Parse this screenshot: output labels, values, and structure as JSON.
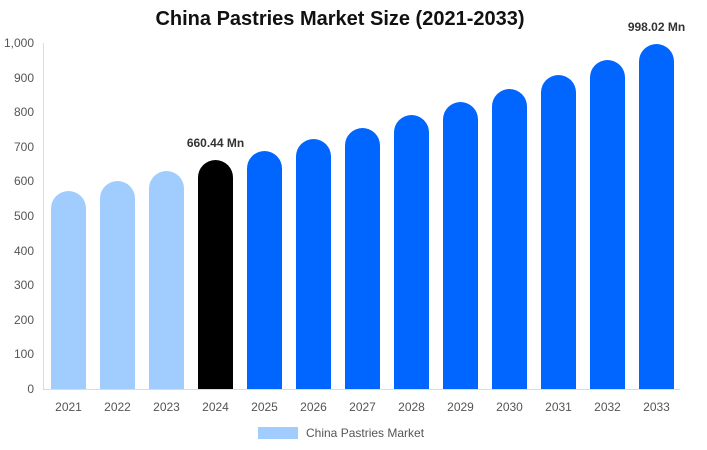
{
  "chart_data": {
    "type": "bar",
    "title": "China Pastries Market Size (2021-2033)",
    "xlabel": "",
    "ylabel": "",
    "ylim": [
      0,
      1000
    ],
    "yticks": [
      "0",
      "100",
      "200",
      "300",
      "400",
      "500",
      "600",
      "700",
      "800",
      "900",
      "1,000"
    ],
    "categories": [
      "2021",
      "2022",
      "2023",
      "2024",
      "2025",
      "2026",
      "2027",
      "2028",
      "2029",
      "2030",
      "2031",
      "2032",
      "2033"
    ],
    "series": [
      {
        "name": "China Pastries Market",
        "values": [
          572,
          601,
          630,
          660.44,
          688,
          722,
          754,
          792,
          829,
          867,
          908,
          951,
          998.02
        ]
      }
    ],
    "bar_colors": [
      "#a0cdfd",
      "#a0cdfd",
      "#a0cdfd",
      "#000000",
      "#0066ff",
      "#0066ff",
      "#0066ff",
      "#0066ff",
      "#0066ff",
      "#0066ff",
      "#0066ff",
      "#0066ff",
      "#0066ff"
    ],
    "annotations": [
      {
        "category": "2024",
        "text": "660.44 Mn"
      },
      {
        "category": "2033",
        "text": "998.02 Mn"
      }
    ],
    "legend": {
      "position": "bottom",
      "label": "China Pastries Market",
      "color": "#a0cdfd"
    },
    "grid": false
  }
}
